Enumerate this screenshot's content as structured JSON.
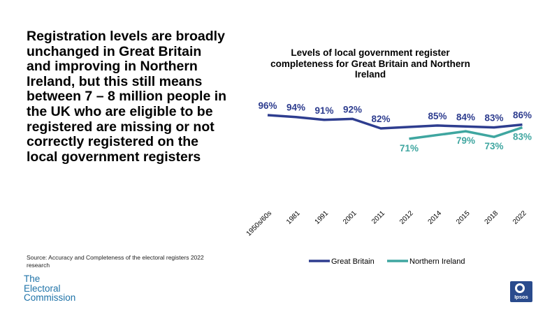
{
  "headline": "Registration levels are broadly unchanged in Great Britain and improving in Northern Ireland, but this still means between 7 – 8 million people in the UK who are eligible to be registered are missing or not correctly registered on the local government registers",
  "source": "Source: Accuracy and Completeness of the electoral registers 2022 research",
  "logo_electoral": {
    "line1": "The",
    "line2": "Electoral",
    "line3": "Commission"
  },
  "logo_ipsos": "Ipsos",
  "colors": {
    "great_britain": "#2e3d8f",
    "northern_ireland": "#3fa6a0"
  },
  "chart_data": {
    "type": "line",
    "title": "Levels of local government register completeness for Great Britain and Northern Ireland",
    "categories": [
      "1950s/60s",
      "1981",
      "1991",
      "2001",
      "2011",
      "2012",
      "2014",
      "2015",
      "2018",
      "2022"
    ],
    "series": [
      {
        "name": "Great Britain",
        "color": "#2e3d8f",
        "values": [
          96,
          94,
          91,
          92,
          82,
          null,
          85,
          84,
          83,
          86
        ],
        "labels": [
          "96%",
          "94%",
          "91%",
          "92%",
          "82%",
          null,
          "85%",
          "84%",
          "83%",
          "86%"
        ]
      },
      {
        "name": "Northern Ireland",
        "color": "#3fa6a0",
        "values": [
          null,
          null,
          null,
          null,
          null,
          71,
          null,
          79,
          73,
          83
        ],
        "labels": [
          null,
          null,
          null,
          null,
          null,
          "71%",
          null,
          "79%",
          "73%",
          "83%"
        ]
      }
    ],
    "legend_position": "bottom",
    "grid": false,
    "ylim": [
      60,
      100
    ]
  }
}
